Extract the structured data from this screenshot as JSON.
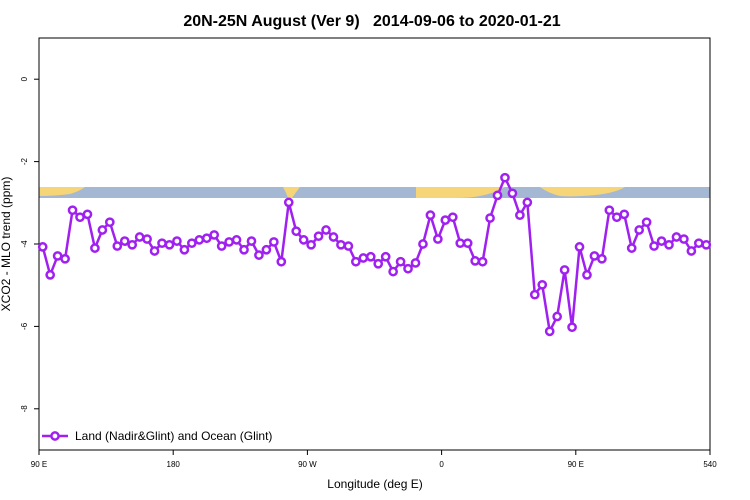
{
  "chart_data": {
    "type": "line",
    "title": "20N-25N August (Ver 9)   2014-09-06 to 2020-01-21",
    "x_label": "Longitude (deg E)",
    "y_label": "XCO2 - MLO trend (ppm)",
    "xlim": [
      90,
      540
    ],
    "xticks": [
      {
        "value": 90,
        "label": "90 E"
      },
      180,
      {
        "value": 270,
        "label": "90 W"
      },
      {
        "value": 360,
        "label": "0"
      },
      {
        "value": 450,
        "label": "90 E"
      },
      540
    ],
    "ylim": [
      -9,
      1
    ],
    "yticks": [
      0,
      -2,
      -4,
      -6,
      -8
    ],
    "grid": false,
    "legend": "bottom-left",
    "x": [
      92.5,
      97.5,
      102.5,
      107.5,
      112.5,
      117.5,
      122.5,
      127.5,
      132.5,
      137.5,
      142.5,
      147.5,
      152.5,
      157.5,
      162.5,
      167.5,
      172.5,
      177.5,
      182.5,
      187.5,
      192.5,
      197.5,
      202.5,
      207.5,
      212.5,
      217.5,
      222.5,
      227.5,
      232.5,
      237.5,
      242.5,
      247.5,
      252.5,
      257.5,
      262.5,
      267.5,
      272.5,
      277.5,
      282.5,
      287.5,
      292.5,
      297.5,
      302.5,
      307.5,
      312.5,
      317.5,
      322.5,
      327.5,
      332.5,
      337.5,
      342.5,
      347.5,
      352.5,
      357.5,
      362.5,
      367.5,
      372.5,
      377.5,
      382.5,
      387.5,
      392.5,
      397.5,
      402.5,
      407.5,
      412.5,
      417.5,
      422.5,
      427.5,
      432.5,
      437.5,
      442.5,
      447.5,
      452.5,
      457.5,
      462.5,
      467.5,
      472.5,
      477.5,
      482.5,
      487.5,
      492.5,
      497.5,
      502.5,
      507.5,
      512.5,
      517.5,
      522.5,
      527.5,
      532.5,
      537.5
    ],
    "series": [
      {
        "name": "Land (Nadir&Glint) and Ocean (Glint)",
        "color": "#a020f0",
        "values": [
          -4.07,
          -4.75,
          -4.29,
          -4.36,
          -3.18,
          -3.35,
          -3.28,
          -4.1,
          -3.66,
          -3.47,
          -4.05,
          -3.93,
          -4.02,
          -3.83,
          -3.88,
          -4.17,
          -3.98,
          -4.02,
          -3.93,
          -4.14,
          -3.98,
          -3.9,
          -3.86,
          -3.78,
          -4.05,
          -3.95,
          -3.9,
          -4.14,
          -3.93,
          -4.27,
          -4.14,
          -3.95,
          -4.43,
          -2.99,
          -3.69,
          -3.9,
          -4.02,
          -3.81,
          -3.66,
          -3.83,
          -4.02,
          -4.05,
          -4.43,
          -4.34,
          -4.31,
          -4.48,
          -4.31,
          -4.67,
          -4.43,
          -4.6,
          -4.46,
          -4.0,
          -3.3,
          -3.88,
          -3.42,
          -3.35,
          -3.98,
          -3.98,
          -4.41,
          -4.43,
          -3.37,
          -2.82,
          -2.39,
          -2.77,
          -3.3,
          -2.99,
          -5.23,
          -4.99,
          -6.12,
          -5.76,
          -4.63,
          -6.02,
          -4.07,
          -4.75,
          -4.29,
          -4.36,
          -3.18,
          -3.35,
          -3.28,
          -4.1,
          -3.66,
          -3.47,
          -4.05,
          -3.93,
          -4.02,
          -3.83,
          -3.88,
          -4.17,
          -3.98,
          -4.02
        ]
      }
    ]
  }
}
